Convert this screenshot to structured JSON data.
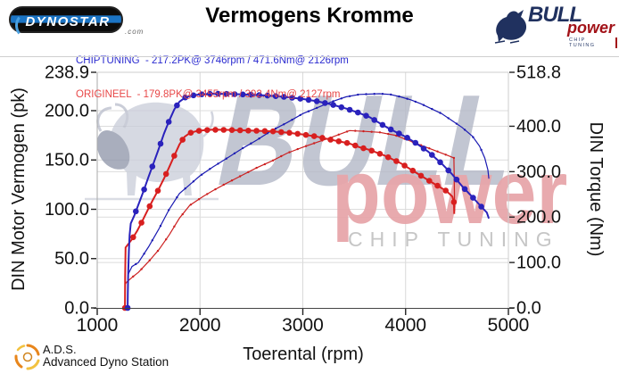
{
  "header": {
    "dynostar_logo": {
      "text": "DYNOSTAR",
      "suffix": ".com"
    },
    "title": "Vermogens Kromme",
    "legend": [
      {
        "name": "CHIPTUNING",
        "text": "CHIPTUNING  - 217.2PK@ 3746rpm / 471.6Nm@ 2126rpm",
        "color": "#2b2bd0"
      },
      {
        "name": "ORIGINEEL",
        "text": "ORIGINEEL  - 179.8PK@ 3455rpm / 392.4Nm@ 2127rpm",
        "color": "#e84848"
      }
    ],
    "bull_logo": {
      "brand": "BULL",
      "sub": "power",
      "tagline": "CHIP TUNING",
      "navy": "#20315f",
      "red": "#a21218"
    }
  },
  "footer": {
    "abbr": "A.D.S.",
    "name": "Advanced Dyno Station"
  },
  "chart_data": {
    "type": "line",
    "title": "Vermogens Kromme",
    "xlabel": "Toerental (rpm)",
    "ylabel_left": "DIN Motor Vermogen (pk)",
    "ylabel_right": "DIN Torque (Nm)",
    "x_range": [
      1000,
      5000
    ],
    "y_left_range": [
      0,
      238.9
    ],
    "y_right_range": [
      0,
      518.8
    ],
    "grid": true,
    "x_ticks": [
      {
        "v": 1000,
        "label": "1000"
      },
      {
        "v": 2000,
        "label": "2000"
      },
      {
        "v": 3000,
        "label": "3000"
      },
      {
        "v": 4000,
        "label": "4000"
      },
      {
        "v": 5000,
        "label": "5000"
      }
    ],
    "y_left_ticks": [
      {
        "v": 0,
        "label": "0.0"
      },
      {
        "v": 50,
        "label": "50.0"
      },
      {
        "v": 100,
        "label": "100.0"
      },
      {
        "v": 150,
        "label": "150.0"
      },
      {
        "v": 200,
        "label": "200.0"
      },
      {
        "v": 238.9,
        "label": "238.9"
      }
    ],
    "y_right_ticks": [
      {
        "v": 0,
        "label": "0.0"
      },
      {
        "v": 100,
        "label": "100.0"
      },
      {
        "v": 200,
        "label": "200.0"
      },
      {
        "v": 300,
        "label": "300.0"
      },
      {
        "v": 400,
        "label": "400.0"
      },
      {
        "v": 518.8,
        "label": "518.8"
      }
    ],
    "peaks": {
      "chiptuning": {
        "power_pk": 217.2,
        "power_rpm": 3746,
        "torque_nm": 471.6,
        "torque_rpm": 2126
      },
      "origineel": {
        "power_pk": 179.8,
        "power_rpm": 3455,
        "torque_nm": 392.4,
        "torque_rpm": 2127
      }
    },
    "watermark": {
      "brand": "BULL",
      "sub": "power",
      "tagline": "CHIP TUNING"
    },
    "series": [
      {
        "name": "CHIPTUNING vermogen (pk)",
        "axis": "left",
        "color": "#1a1ab2",
        "width": 1.2,
        "marker": 1.2,
        "marker_step": 80,
        "points": [
          [
            1296,
            0
          ],
          [
            1299,
            33
          ],
          [
            1310,
            36
          ],
          [
            1338,
            42
          ],
          [
            1400,
            46
          ],
          [
            1500,
            62
          ],
          [
            1600,
            80
          ],
          [
            1700,
            100
          ],
          [
            1800,
            116
          ],
          [
            1900,
            125
          ],
          [
            2000,
            134
          ],
          [
            2126,
            143
          ],
          [
            2250,
            151
          ],
          [
            2400,
            161
          ],
          [
            2550,
            170
          ],
          [
            2700,
            180
          ],
          [
            2850,
            188
          ],
          [
            3000,
            197
          ],
          [
            3140,
            203
          ],
          [
            3280,
            209
          ],
          [
            3420,
            214
          ],
          [
            3550,
            216.5
          ],
          [
            3746,
            217.2
          ],
          [
            3850,
            216.5
          ],
          [
            3950,
            214
          ],
          [
            4050,
            211
          ],
          [
            4150,
            207
          ],
          [
            4250,
            202
          ],
          [
            4350,
            197
          ],
          [
            4450,
            190
          ],
          [
            4550,
            183
          ],
          [
            4650,
            174
          ],
          [
            4720,
            164
          ],
          [
            4770,
            152
          ],
          [
            4800,
            140
          ],
          [
            4810,
            131
          ]
        ]
      },
      {
        "name": "ORIGINEEL vermogen (pk)",
        "axis": "left",
        "color": "#cc2020",
        "width": 1.2,
        "marker": 1.2,
        "marker_step": 80,
        "points": [
          [
            1270,
            0
          ],
          [
            1273,
            24
          ],
          [
            1285,
            26
          ],
          [
            1340,
            31
          ],
          [
            1400,
            36
          ],
          [
            1500,
            47
          ],
          [
            1600,
            59
          ],
          [
            1700,
            74
          ],
          [
            1800,
            91
          ],
          [
            1900,
            104
          ],
          [
            2030,
            113
          ],
          [
            2127,
            119
          ],
          [
            2250,
            126
          ],
          [
            2400,
            134
          ],
          [
            2550,
            142
          ],
          [
            2700,
            149
          ],
          [
            2850,
            157
          ],
          [
            3000,
            163
          ],
          [
            3140,
            168
          ],
          [
            3280,
            173
          ],
          [
            3455,
            179.8
          ],
          [
            3600,
            179
          ],
          [
            3750,
            178
          ],
          [
            3900,
            175
          ],
          [
            4000,
            171
          ],
          [
            4100,
            167
          ],
          [
            4200,
            163
          ],
          [
            4300,
            159
          ],
          [
            4400,
            155
          ],
          [
            4470,
            152
          ],
          [
            4478,
            98
          ]
        ]
      },
      {
        "name": "ORIGINEEL koppel (Nm)",
        "axis": "right",
        "color": "#d81f1f",
        "width": 2,
        "marker": 3.3,
        "marker_step": 80,
        "points": [
          [
            1270,
            0
          ],
          [
            1272,
            70
          ],
          [
            1276,
            133
          ],
          [
            1300,
            140
          ],
          [
            1340,
            152
          ],
          [
            1390,
            170
          ],
          [
            1440,
            192
          ],
          [
            1490,
            215
          ],
          [
            1540,
            237
          ],
          [
            1590,
            258
          ],
          [
            1650,
            285
          ],
          [
            1700,
            310
          ],
          [
            1750,
            335
          ],
          [
            1800,
            360
          ],
          [
            1850,
            377
          ],
          [
            1900,
            385
          ],
          [
            1960,
            389
          ],
          [
            2030,
            391
          ],
          [
            2127,
            392.4
          ],
          [
            2250,
            392
          ],
          [
            2400,
            391
          ],
          [
            2550,
            390
          ],
          [
            2700,
            389
          ],
          [
            2850,
            386
          ],
          [
            3000,
            382
          ],
          [
            3140,
            377
          ],
          [
            3280,
            370
          ],
          [
            3455,
            362
          ],
          [
            3550,
            354
          ],
          [
            3650,
            348
          ],
          [
            3800,
            335
          ],
          [
            3950,
            319
          ],
          [
            4100,
            298
          ],
          [
            4250,
            277
          ],
          [
            4400,
            257
          ],
          [
            4455,
            245
          ],
          [
            4470,
            233
          ],
          [
            4473,
            207
          ]
        ]
      },
      {
        "name": "CHIPTUNING koppel (Nm)",
        "axis": "right",
        "color": "#2a22bc",
        "width": 2,
        "marker": 3.3,
        "marker_step": 80,
        "points": [
          [
            1296,
            0
          ],
          [
            1298,
            33
          ],
          [
            1302,
            80
          ],
          [
            1308,
            125
          ],
          [
            1315,
            160
          ],
          [
            1326,
            186
          ],
          [
            1360,
            203
          ],
          [
            1400,
            227
          ],
          [
            1450,
            257
          ],
          [
            1500,
            289
          ],
          [
            1550,
            320
          ],
          [
            1600,
            351
          ],
          [
            1650,
            384
          ],
          [
            1700,
            412
          ],
          [
            1750,
            437
          ],
          [
            1800,
            454
          ],
          [
            1860,
            464
          ],
          [
            1930,
            468
          ],
          [
            2000,
            470
          ],
          [
            2126,
            471.6
          ],
          [
            2300,
            471
          ],
          [
            2500,
            469.5
          ],
          [
            2700,
            467
          ],
          [
            2850,
            464
          ],
          [
            3000,
            460
          ],
          [
            3140,
            455
          ],
          [
            3280,
            448
          ],
          [
            3420,
            439
          ],
          [
            3550,
            429
          ],
          [
            3650,
            420
          ],
          [
            3746,
            407
          ],
          [
            3830,
            396
          ],
          [
            3900,
            388
          ],
          [
            4000,
            377
          ],
          [
            4100,
            363
          ],
          [
            4220,
            344
          ],
          [
            4350,
            318
          ],
          [
            4450,
            295
          ],
          [
            4550,
            268
          ],
          [
            4650,
            244
          ],
          [
            4740,
            222
          ],
          [
            4790,
            210
          ],
          [
            4810,
            197
          ]
        ]
      }
    ]
  }
}
